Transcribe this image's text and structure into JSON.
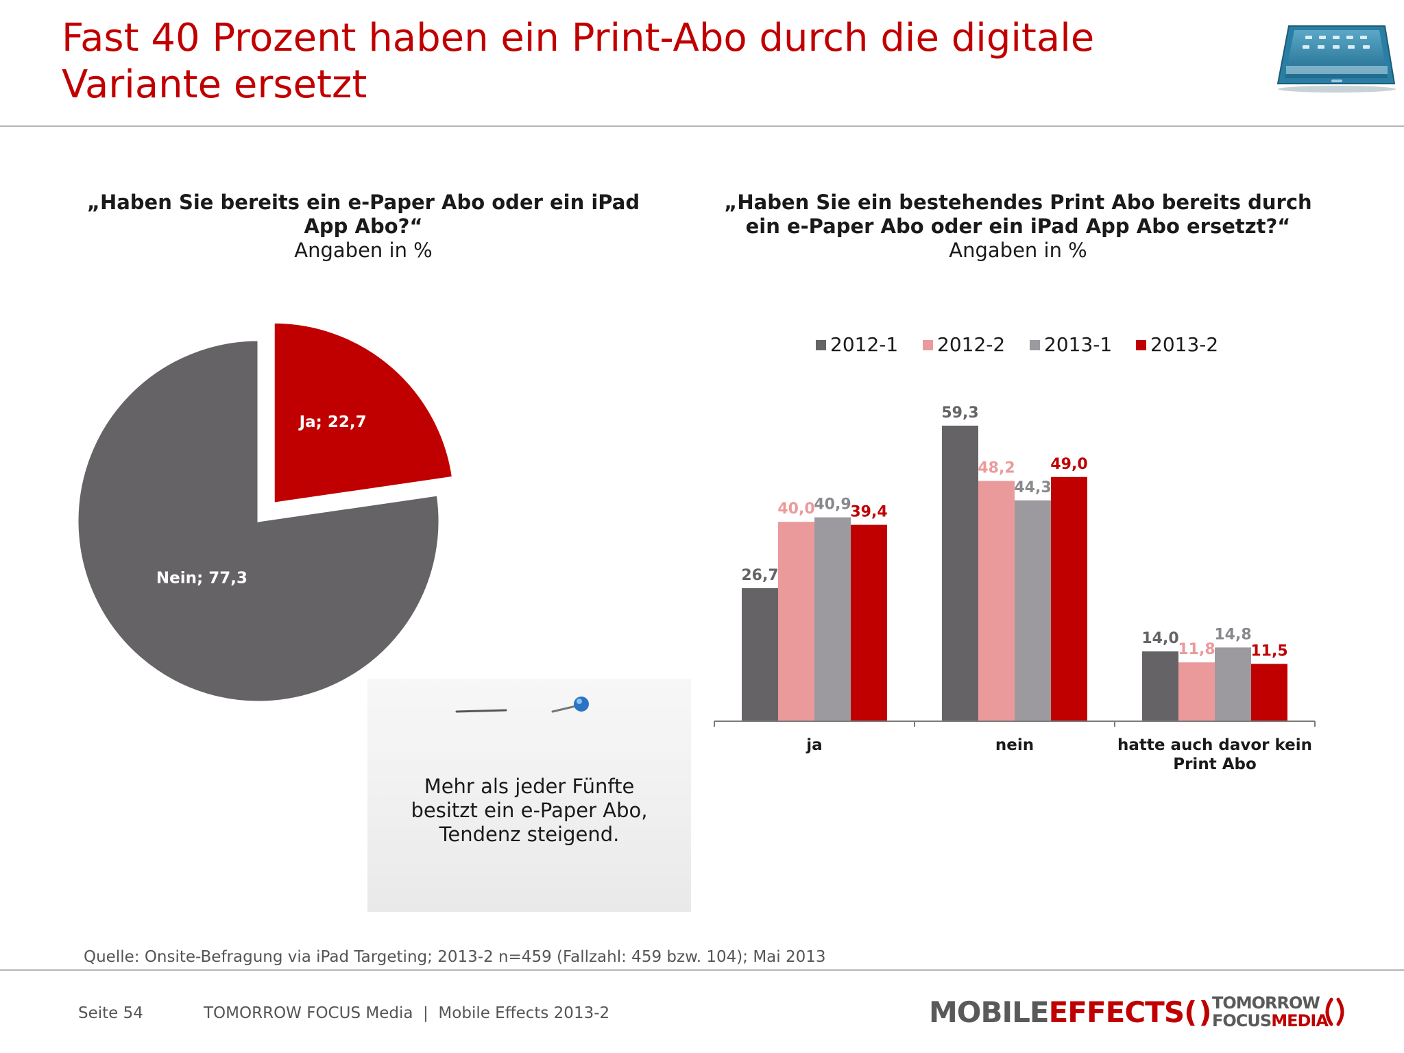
{
  "title": "Fast 40 Prozent haben ein Print-Abo durch die digitale Variante ersetzt",
  "colors": {
    "accent": "#c00000",
    "dark_gray": "#656366",
    "pink": "#eb9a9c",
    "light_gray": "#9c9a9e",
    "red": "#c00000"
  },
  "header_icon": "tablet-icon",
  "left_question": {
    "title": "„Haben Sie bereits ein e-Paper Abo oder ein iPad App Abo?“",
    "subtitle": "Angaben in %"
  },
  "right_question": {
    "title": "„Haben Sie ein bestehendes Print Abo bereits durch ein e-Paper Abo oder ein iPad App Abo ersetzt?“",
    "subtitle": "Angaben in %"
  },
  "chart_data": [
    {
      "type": "pie",
      "title": "",
      "slices": [
        {
          "label": "Ja; 22,7",
          "name": "Ja",
          "value": 22.7,
          "color": "#c00000",
          "exploded": true
        },
        {
          "label": "Nein; 77,3",
          "name": "Nein",
          "value": 77.3,
          "color": "#656366",
          "exploded": false
        }
      ]
    },
    {
      "type": "bar",
      "title": "",
      "categories": [
        "ja",
        "nein",
        "hatte auch davor kein Print Abo"
      ],
      "category_lines": [
        [
          "ja"
        ],
        [
          "nein"
        ],
        [
          "hatte auch davor kein",
          "Print Abo"
        ]
      ],
      "series": [
        {
          "name": "2012-1",
          "color": "#656366",
          "values": [
            26.7,
            59.3,
            14.0
          ],
          "labels": [
            "26,7",
            "59,3",
            "14,0"
          ]
        },
        {
          "name": "2012-2",
          "color": "#eb9a9c",
          "values": [
            40.0,
            48.2,
            11.8
          ],
          "labels": [
            "40,0",
            "48,2",
            "11,8"
          ]
        },
        {
          "name": "2013-1",
          "color": "#9c9a9e",
          "values": [
            40.9,
            44.3,
            14.8
          ],
          "labels": [
            "40,9",
            "44,3",
            "14,8"
          ]
        },
        {
          "name": "2013-2",
          "color": "#c00000",
          "values": [
            39.4,
            49.0,
            11.5
          ],
          "labels": [
            "39,4",
            "49,0",
            "11,5"
          ]
        }
      ],
      "ylim": [
        0,
        65
      ],
      "legend": "top",
      "grid": false
    }
  ],
  "note": {
    "lines": [
      "Mehr als jeder Fünfte",
      "besitzt ein e-Paper Abo,",
      "Tendenz steigend."
    ],
    "icon": "pushpin-icon"
  },
  "source": "Quelle: Onsite-Befragung via iPad Targeting; 2013-2 n=459 (Fallzahl: 459 bzw. 104); Mai 2013",
  "footer": {
    "page": "Seite 54",
    "company": "TOMORROW FOCUS Media  |  Mobile Effects 2013-2",
    "logo_mobile": "MOBILE",
    "logo_effects": "EFFECTS",
    "logo_tf_line1": "TOMORROW",
    "logo_tf_line2a": "FOCUS",
    "logo_tf_line2b": "MEDIA"
  }
}
